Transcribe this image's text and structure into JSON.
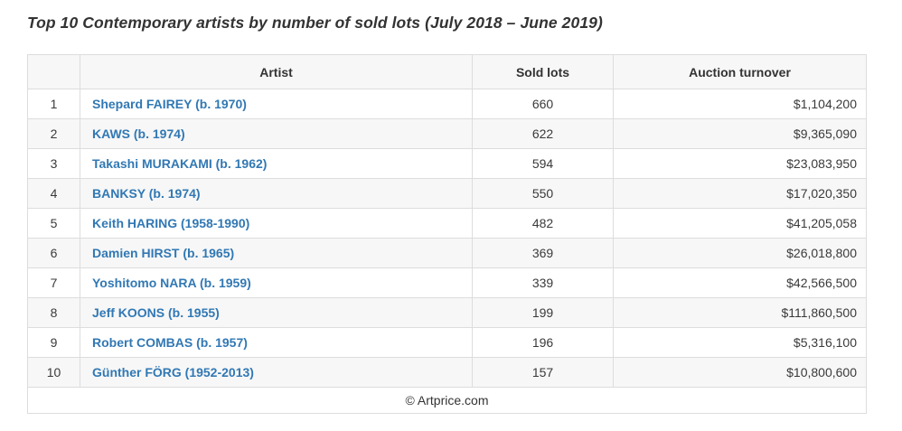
{
  "title": "Top 10 Contemporary artists by number of sold lots (July 2018 – June 2019)",
  "colors": {
    "link_blue": "#3178b4",
    "header_bg": "#f7f7f7",
    "stripe_bg": "#f7f7f7",
    "border": "#dddddd",
    "text": "#333333"
  },
  "table": {
    "headers": [
      "",
      "Artist",
      "Sold lots",
      "Auction turnover"
    ],
    "rows": [
      {
        "rank": "1",
        "artist": "Shepard FAIREY (b. 1970)",
        "sold_lots": "660",
        "auction_turnover": "$1,104,200"
      },
      {
        "rank": "2",
        "artist": "KAWS (b. 1974)",
        "sold_lots": "622",
        "auction_turnover": "$9,365,090"
      },
      {
        "rank": "3",
        "artist": "Takashi MURAKAMI (b. 1962)",
        "sold_lots": "594",
        "auction_turnover": "$23,083,950"
      },
      {
        "rank": "4",
        "artist": "BANKSY (b. 1974)",
        "sold_lots": "550",
        "auction_turnover": "$17,020,350"
      },
      {
        "rank": "5",
        "artist": "Keith HARING (1958-1990)",
        "sold_lots": "482",
        "auction_turnover": "$41,205,058"
      },
      {
        "rank": "6",
        "artist": "Damien HIRST (b. 1965)",
        "sold_lots": "369",
        "auction_turnover": "$26,018,800"
      },
      {
        "rank": "7",
        "artist": "Yoshitomo NARA (b. 1959)",
        "sold_lots": "339",
        "auction_turnover": "$42,566,500"
      },
      {
        "rank": "8",
        "artist": "Jeff KOONS (b. 1955)",
        "sold_lots": "199",
        "auction_turnover": "$111,860,500"
      },
      {
        "rank": "9",
        "artist": "Robert COMBAS (b. 1957)",
        "sold_lots": "196",
        "auction_turnover": "$5,316,100"
      },
      {
        "rank": "10",
        "artist": "Günther FÖRG (1952-2013)",
        "sold_lots": "157",
        "auction_turnover": "$10,800,600"
      }
    ],
    "footer": "© Artprice.com"
  }
}
